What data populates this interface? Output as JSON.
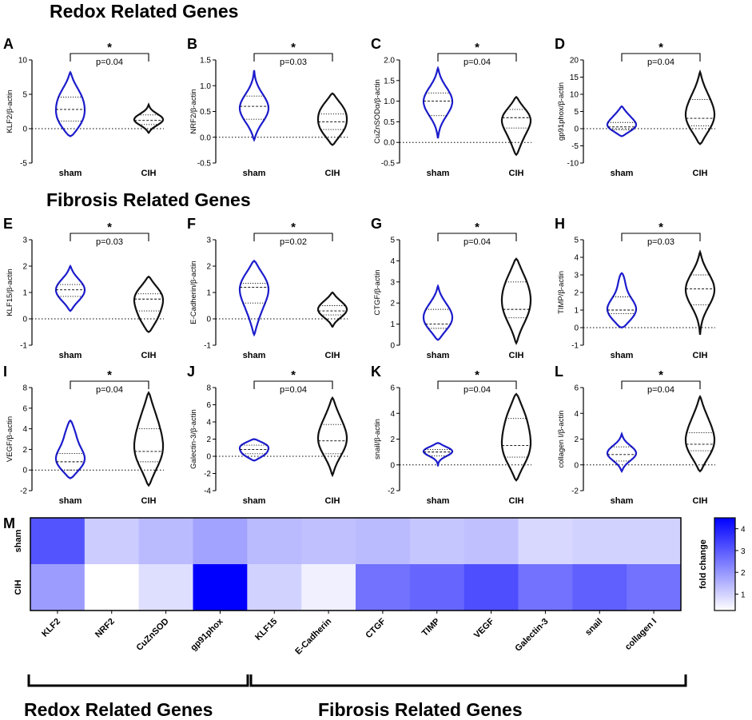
{
  "section_titles": {
    "redox_top": "Redox Related Genes",
    "fibrosis_top": "Fibrosis Related Genes",
    "redox_bottom": "Redox Related Genes",
    "fibrosis_bottom": "Fibrosis Related Genes"
  },
  "colors": {
    "sham": "#1c1ccc",
    "cih": "#111111",
    "heat_max": "#0000ff"
  },
  "chart_data": [
    {
      "panel": "A",
      "type": "violin",
      "ylabel": "KLF2/β-actin",
      "ylim": [
        -5,
        10
      ],
      "yticks": [
        -5,
        0,
        5,
        10
      ],
      "categories": [
        "sham",
        "CIH"
      ],
      "pvalue": "p=0.04",
      "sig": "*",
      "series": [
        {
          "name": "sham",
          "max": 8.2,
          "min": -1.1,
          "median": 2.8,
          "q1": 1.1,
          "q3": 4.6,
          "modes": [
            [
              1.0,
              1
            ],
            [
              4.6,
              0.8
            ]
          ]
        },
        {
          "name": "CIH",
          "max": 3.5,
          "min": -0.6,
          "median": 1.2,
          "q1": 0.6,
          "q3": 2.0,
          "modes": [
            [
              1.3,
              1
            ]
          ]
        }
      ]
    },
    {
      "panel": "B",
      "type": "violin",
      "ylabel": "NRF2/β-actin",
      "ylim": [
        -0.5,
        1.5
      ],
      "yticks": [
        -0.5,
        0.0,
        0.5,
        1.0,
        1.5
      ],
      "categories": [
        "sham",
        "CIH"
      ],
      "pvalue": "p=0.03",
      "sig": "*",
      "series": [
        {
          "name": "sham",
          "max": 1.3,
          "min": -0.05,
          "median": 0.6,
          "q1": 0.35,
          "q3": 0.8,
          "modes": [
            [
              0.55,
              1
            ]
          ]
        },
        {
          "name": "CIH",
          "max": 0.85,
          "min": -0.15,
          "median": 0.3,
          "q1": 0.15,
          "q3": 0.45,
          "modes": [
            [
              0.15,
              0.9
            ],
            [
              0.55,
              0.9
            ]
          ]
        }
      ]
    },
    {
      "panel": "C",
      "type": "violin",
      "ylabel": "CuZnSODα/β-actin",
      "ylim": [
        -0.5,
        2.0
      ],
      "yticks": [
        -0.5,
        0.0,
        0.5,
        1.0,
        1.5,
        2.0
      ],
      "categories": [
        "sham",
        "CIH"
      ],
      "pvalue": "p=0.04",
      "sig": "*",
      "series": [
        {
          "name": "sham",
          "max": 1.8,
          "min": 0.1,
          "median": 1.0,
          "q1": 0.65,
          "q3": 1.2,
          "modes": [
            [
              1.0,
              1
            ]
          ]
        },
        {
          "name": "CIH",
          "max": 1.1,
          "min": -0.3,
          "median": 0.6,
          "q1": 0.35,
          "q3": 0.8,
          "modes": [
            [
              0.6,
              1
            ],
            [
              0.0,
              0.35
            ]
          ]
        }
      ]
    },
    {
      "panel": "D",
      "type": "violin",
      "ylabel": "gp91phox/β-actin",
      "ylim": [
        -10,
        20
      ],
      "yticks": [
        -10,
        -5,
        0,
        5,
        10,
        15,
        20
      ],
      "categories": [
        "sham",
        "CIH"
      ],
      "pvalue": "p=0.04",
      "sig": "*",
      "series": [
        {
          "name": "sham",
          "max": 6.5,
          "min": -2.2,
          "median": 0.5,
          "q1": -0.3,
          "q3": 1.8,
          "modes": [
            [
              0.5,
              1
            ],
            [
              4.0,
              0.4
            ]
          ]
        },
        {
          "name": "CIH",
          "max": 16.5,
          "min": -4.5,
          "median": 3.0,
          "q1": 0.8,
          "q3": 8.5,
          "modes": [
            [
              2.0,
              1
            ],
            [
              9.0,
              0.5
            ]
          ]
        }
      ]
    },
    {
      "panel": "E",
      "type": "violin",
      "ylabel": "KLF15/β-actin",
      "ylim": [
        -1,
        3
      ],
      "yticks": [
        -1,
        0,
        1,
        2,
        3
      ],
      "categories": [
        "sham",
        "CIH"
      ],
      "pvalue": "p=0.03",
      "sig": "*",
      "series": [
        {
          "name": "sham",
          "max": 2.0,
          "min": 0.3,
          "median": 1.1,
          "q1": 0.85,
          "q3": 1.3,
          "modes": [
            [
              0.85,
              1
            ],
            [
              1.3,
              1
            ]
          ]
        },
        {
          "name": "CIH",
          "max": 1.6,
          "min": -0.5,
          "median": 0.75,
          "q1": 0.3,
          "q3": 0.95,
          "modes": [
            [
              0.9,
              1
            ],
            [
              0.0,
              0.65
            ]
          ]
        }
      ]
    },
    {
      "panel": "F",
      "type": "violin",
      "ylabel": "E-Cadherin/β-actin",
      "ylim": [
        -1,
        3
      ],
      "yticks": [
        -1,
        0,
        1,
        2,
        3
      ],
      "categories": [
        "sham",
        "CIH"
      ],
      "pvalue": "p=0.02",
      "sig": "*",
      "series": [
        {
          "name": "sham",
          "max": 2.2,
          "min": -0.6,
          "median": 1.2,
          "q1": 0.6,
          "q3": 1.35,
          "modes": [
            [
              1.3,
              1
            ],
            [
              0.2,
              0.35
            ]
          ]
        },
        {
          "name": "CIH",
          "max": 1.0,
          "min": -0.3,
          "median": 0.3,
          "q1": 0.15,
          "q3": 0.5,
          "modes": [
            [
              0.25,
              1
            ],
            [
              0.6,
              0.6
            ]
          ]
        }
      ]
    },
    {
      "panel": "G",
      "type": "violin",
      "ylabel": "CTGF/β-actin",
      "ylim": [
        0,
        5
      ],
      "yticks": [
        0,
        1,
        2,
        3,
        4,
        5
      ],
      "categories": [
        "sham",
        "CIH"
      ],
      "pvalue": "p=0.04",
      "sig": "*",
      "series": [
        {
          "name": "sham",
          "max": 2.8,
          "min": 0.25,
          "median": 1.0,
          "q1": 0.8,
          "q3": 1.7,
          "modes": [
            [
              1.0,
              1
            ],
            [
              1.75,
              0.65
            ]
          ]
        },
        {
          "name": "CIH",
          "max": 4.1,
          "min": 0.1,
          "median": 1.7,
          "q1": 1.3,
          "q3": 3.0,
          "modes": [
            [
              1.6,
              1
            ],
            [
              3.0,
              0.85
            ]
          ]
        }
      ]
    },
    {
      "panel": "H",
      "type": "violin",
      "ylabel": "TIMP/β-actin",
      "ylim": [
        -1,
        5
      ],
      "yticks": [
        -1,
        0,
        1,
        2,
        3,
        4,
        5
      ],
      "categories": [
        "sham",
        "CIH"
      ],
      "pvalue": "p=0.03",
      "sig": "*",
      "series": [
        {
          "name": "sham",
          "max": 3.1,
          "min": 0.0,
          "median": 1.0,
          "q1": 0.8,
          "q3": 1.75,
          "modes": [
            [
              1.0,
              1
            ],
            [
              2.8,
              0.3
            ],
            [
              0.3,
              0.25
            ]
          ]
        },
        {
          "name": "CIH",
          "max": 4.3,
          "min": -0.4,
          "median": 2.2,
          "q1": 1.3,
          "q3": 3.0,
          "modes": [
            [
              2.2,
              1
            ]
          ]
        }
      ]
    },
    {
      "panel": "I",
      "type": "violin",
      "ylabel": "VEGF/β-actin",
      "ylim": [
        -2,
        8
      ],
      "yticks": [
        -2,
        0,
        2,
        4,
        6,
        8
      ],
      "categories": [
        "sham",
        "CIH"
      ],
      "pvalue": "p=0.04",
      "sig": "*",
      "series": [
        {
          "name": "sham",
          "max": 4.8,
          "min": -0.8,
          "median": 0.8,
          "q1": 0.0,
          "q3": 1.6,
          "modes": [
            [
              0.8,
              1
            ],
            [
              3.7,
              0.35
            ]
          ]
        },
        {
          "name": "CIH",
          "max": 7.5,
          "min": -1.5,
          "median": 1.8,
          "q1": 0.8,
          "q3": 4.0,
          "modes": [
            [
              1.5,
              1
            ],
            [
              5.0,
              0.55
            ]
          ]
        }
      ]
    },
    {
      "panel": "J",
      "type": "violin",
      "ylabel": "Galectin-3/β-actin",
      "ylim": [
        -4,
        8
      ],
      "yticks": [
        -4,
        -2,
        0,
        2,
        4,
        6,
        8
      ],
      "categories": [
        "sham",
        "CIH"
      ],
      "pvalue": "p=0.04",
      "sig": "*",
      "series": [
        {
          "name": "sham",
          "max": 2.0,
          "min": -0.5,
          "median": 0.8,
          "q1": 0.3,
          "q3": 1.3,
          "modes": [
            [
              1.3,
              1
            ],
            [
              0.2,
              0.8
            ]
          ]
        },
        {
          "name": "CIH",
          "max": 6.8,
          "min": -2.2,
          "median": 1.8,
          "q1": 0.3,
          "q3": 3.7,
          "modes": [
            [
              1.5,
              1
            ],
            [
              4.5,
              0.45
            ]
          ]
        }
      ]
    },
    {
      "panel": "K",
      "type": "violin",
      "ylabel": "snail/β-actin",
      "ylim": [
        -2,
        6
      ],
      "yticks": [
        -2,
        0,
        2,
        4,
        6
      ],
      "categories": [
        "sham",
        "CIH"
      ],
      "pvalue": "p=0.04",
      "sig": "*",
      "series": [
        {
          "name": "sham",
          "max": 1.7,
          "min": -0.1,
          "median": 1.0,
          "q1": 0.7,
          "q3": 1.2,
          "modes": [
            [
              1.1,
              1
            ]
          ]
        },
        {
          "name": "CIH",
          "max": 5.5,
          "min": -1.2,
          "median": 1.5,
          "q1": 0.6,
          "q3": 3.6,
          "modes": [
            [
              1.0,
              1
            ],
            [
              3.8,
              0.7
            ]
          ]
        }
      ]
    },
    {
      "panel": "L",
      "type": "violin",
      "ylabel": "collagen I/β-actin",
      "ylim": [
        -2,
        6
      ],
      "yticks": [
        -2,
        0,
        2,
        4,
        6
      ],
      "categories": [
        "sham",
        "CIH"
      ],
      "pvalue": "p=0.04",
      "sig": "*",
      "series": [
        {
          "name": "sham",
          "max": 2.4,
          "min": -0.5,
          "median": 0.8,
          "q1": 0.3,
          "q3": 1.4,
          "modes": [
            [
              0.9,
              1
            ]
          ]
        },
        {
          "name": "CIH",
          "max": 5.3,
          "min": -0.5,
          "median": 1.6,
          "q1": 1.1,
          "q3": 2.5,
          "modes": [
            [
              1.4,
              1
            ],
            [
              3.5,
              0.5
            ]
          ]
        }
      ]
    },
    {
      "panel": "M",
      "type": "heatmap",
      "rows": [
        "sham",
        "CIH"
      ],
      "columns": [
        "KLF2",
        "NRF2",
        "CuZnSOD",
        "gp91phox",
        "KLF15",
        "E-Cadherin",
        "CTGF",
        "TIMP",
        "VEGF",
        "Galectin-3",
        "snail",
        "collagen I"
      ],
      "values": [
        [
          3.1,
          1.1,
          1.4,
          1.8,
          1.4,
          1.3,
          1.4,
          1.2,
          1.3,
          0.9,
          1.0,
          1.0
        ],
        [
          1.9,
          0.25,
          0.8,
          4.5,
          1.0,
          0.5,
          2.6,
          2.8,
          3.2,
          2.6,
          2.9,
          2.6
        ]
      ],
      "colorbar": {
        "label": "fold change",
        "ticks": [
          1,
          2,
          3,
          4
        ],
        "tick_labels": [
          "1",
          "2",
          "3",
          "4"
        ],
        "range": [
          0.25,
          4.5
        ]
      },
      "groups": [
        {
          "label": "Redox Related Genes",
          "columns": [
            "KLF2",
            "NRF2",
            "CuZnSOD",
            "gp91phox"
          ]
        },
        {
          "label": "Fibrosis Related Genes",
          "columns": [
            "KLF15",
            "E-Cadherin",
            "CTGF",
            "TIMP",
            "VEGF",
            "Galectin-3",
            "snail",
            "collagen I"
          ]
        }
      ]
    }
  ]
}
